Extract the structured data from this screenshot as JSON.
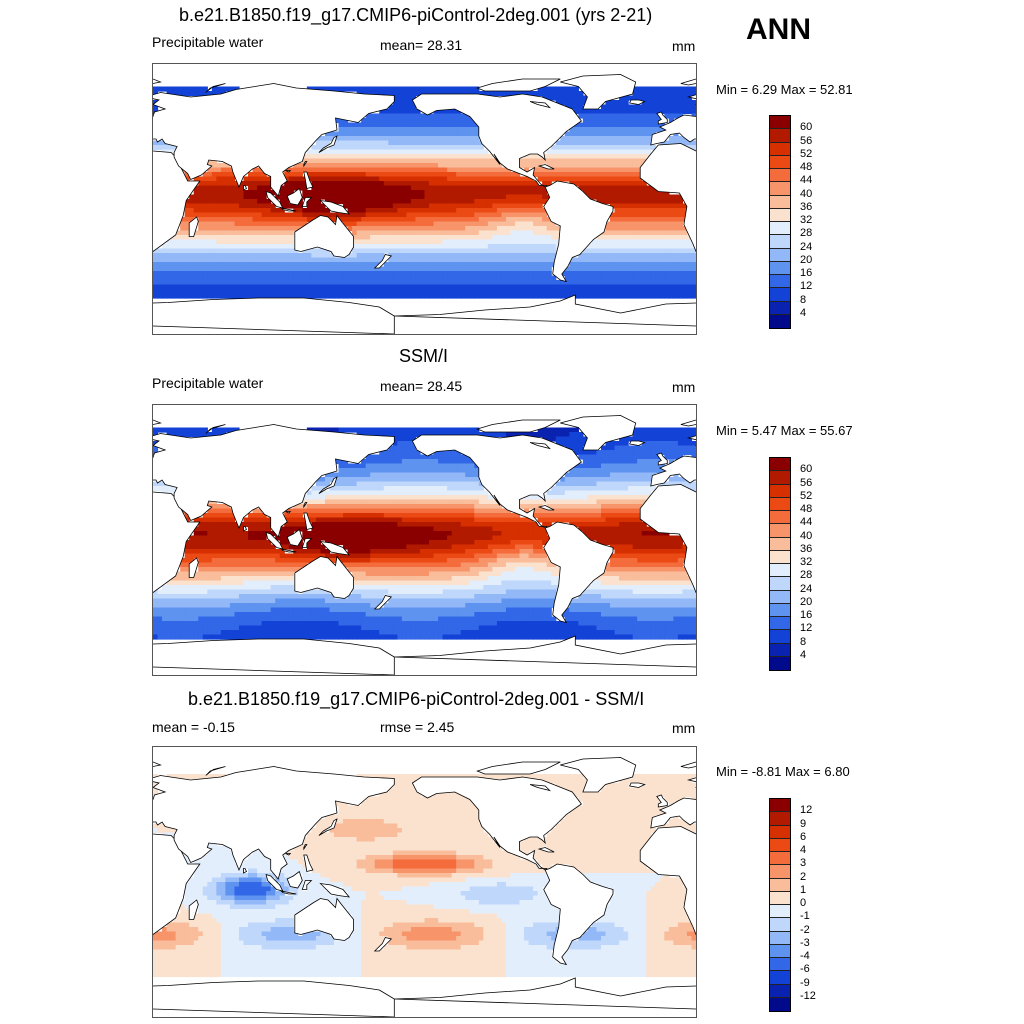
{
  "season": "ANN",
  "land_color": "#ffffff",
  "panels": [
    {
      "title": "b.e21.B1850.f19_g17.CMIP6-piControl-2deg.001 (yrs 2-21)",
      "left_label": "Precipitable water",
      "center_label": "mean=  28.31",
      "right_label": "mm",
      "minmax": "Min =   6.29 Max =  52.81",
      "field": "model",
      "colorbar": {
        "labels": [
          "60",
          "56",
          "52",
          "48",
          "44",
          "40",
          "36",
          "32",
          "28",
          "24",
          "20",
          "16",
          "12",
          "8",
          "4"
        ],
        "colors": [
          "#8a0000",
          "#b21a00",
          "#d62f00",
          "#ec4a14",
          "#f56c3c",
          "#f7946a",
          "#f9bd9b",
          "#fbe2cf",
          "#e3eefc",
          "#bfd7fb",
          "#92b8f7",
          "#5f93f0",
          "#3267e8",
          "#1242d6",
          "#0a22b0",
          "#010a8a"
        ]
      }
    },
    {
      "title": "SSM/I",
      "left_label": "Precipitable water",
      "center_label": "mean=  28.45",
      "right_label": "mm",
      "minmax": "Min =   5.47 Max =  55.67",
      "field": "obs",
      "colorbar": {
        "labels": [
          "60",
          "56",
          "52",
          "48",
          "44",
          "40",
          "36",
          "32",
          "28",
          "24",
          "20",
          "16",
          "12",
          "8",
          "4"
        ],
        "colors": [
          "#8a0000",
          "#b21a00",
          "#d62f00",
          "#ec4a14",
          "#f56c3c",
          "#f7946a",
          "#f9bd9b",
          "#fbe2cf",
          "#e3eefc",
          "#bfd7fb",
          "#92b8f7",
          "#5f93f0",
          "#3267e8",
          "#1242d6",
          "#0a22b0",
          "#010a8a"
        ]
      }
    },
    {
      "title": "b.e21.B1850.f19_g17.CMIP6-piControl-2deg.001 - SSM/I",
      "left_label": "mean =  -0.15",
      "center_label": "rmse =   2.45",
      "right_label": "mm",
      "minmax": "Min =  -8.81 Max =   6.80",
      "field": "diff",
      "colorbar": {
        "labels": [
          "12",
          "9",
          "6",
          "4",
          "3",
          "2",
          "1",
          "0",
          "-1",
          "-2",
          "-3",
          "-4",
          "-6",
          "-9",
          "-12"
        ],
        "colors": [
          "#8a0000",
          "#b21a00",
          "#d62f00",
          "#ec4a14",
          "#f56c3c",
          "#f7946a",
          "#f9bd9b",
          "#fbe2cf",
          "#e3eefc",
          "#bfd7fb",
          "#92b8f7",
          "#5f93f0",
          "#3267e8",
          "#1242d6",
          "#0a22b0",
          "#010a8a"
        ]
      }
    }
  ]
}
